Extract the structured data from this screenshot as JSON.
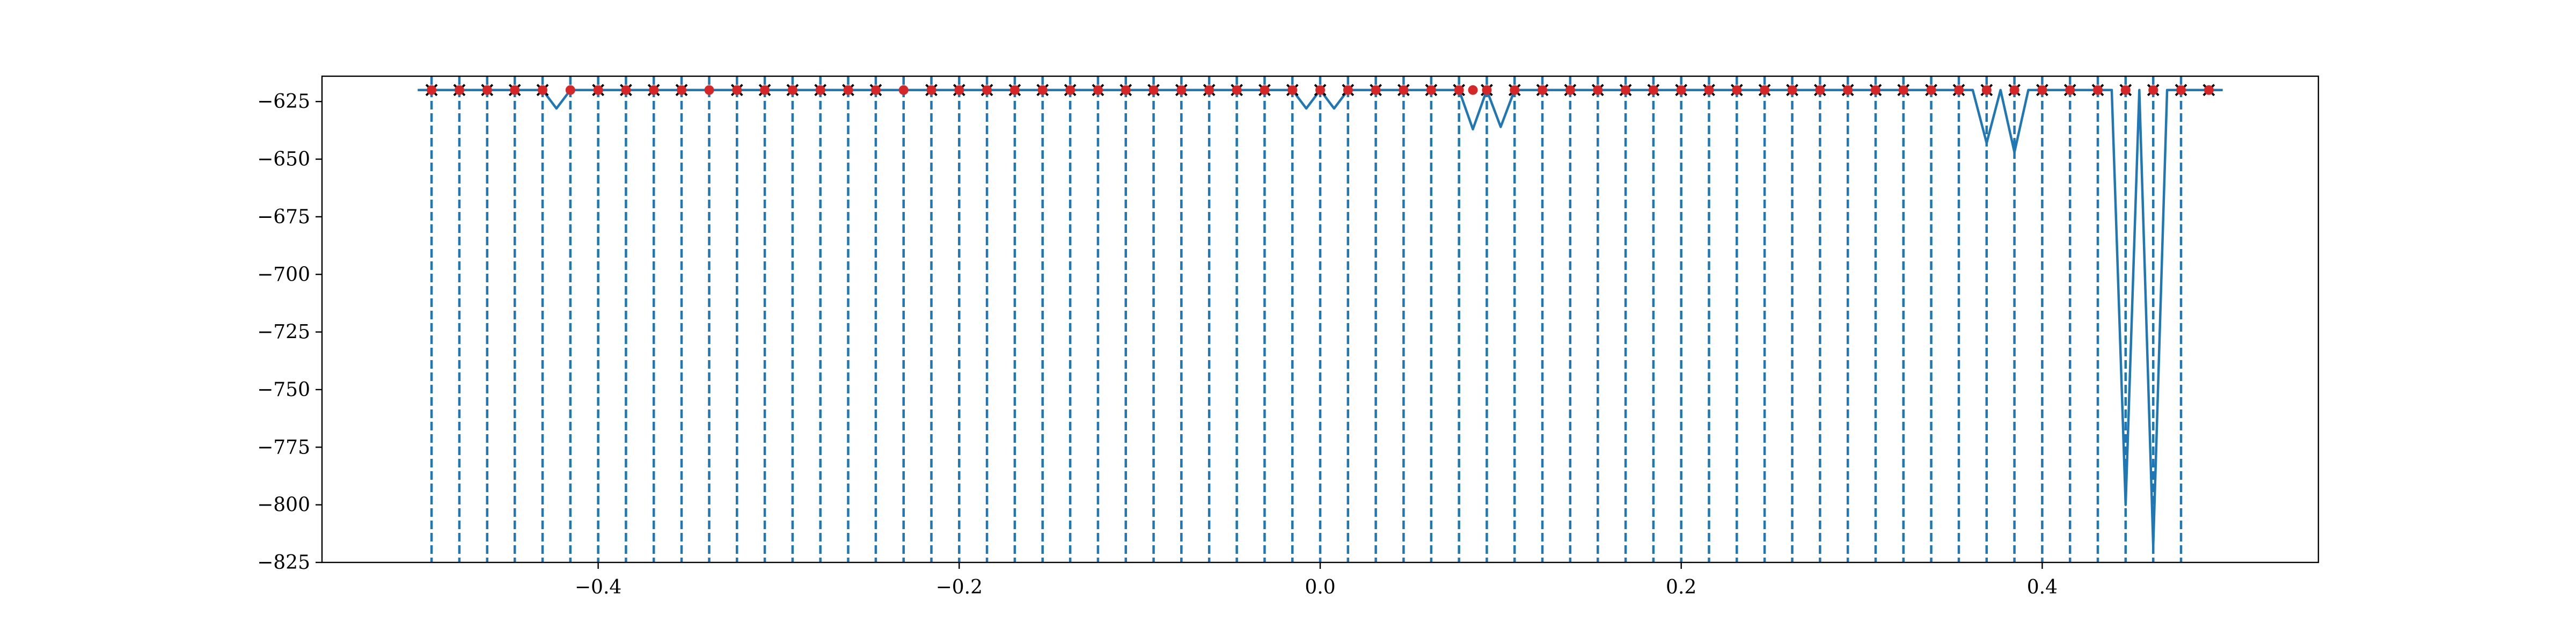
{
  "chart_data": {
    "type": "line",
    "title": "",
    "xlabel": "",
    "ylabel": "",
    "xlim": [
      -0.553,
      0.553
    ],
    "ylim": [
      -825,
      -614
    ],
    "grid": false,
    "xticks": [
      -0.4,
      -0.2,
      0.0,
      0.2,
      0.4
    ],
    "xtick_labels": [
      "−0.4",
      "−0.2",
      "0.0",
      "0.2",
      "0.4"
    ],
    "yticks": [
      -625,
      -650,
      -675,
      -700,
      -725,
      -750,
      -775,
      -800,
      -825
    ],
    "ytick_labels": [
      "−625",
      "−650",
      "−675",
      "−700",
      "−725",
      "−750",
      "−775",
      "−800",
      "−825"
    ],
    "colors": {
      "line": "#1f77b4",
      "red_marker": "#d62728",
      "x_marker": "#000000",
      "axes": "#000000"
    },
    "vertical_dashed_lines_x": [
      -0.4923,
      -0.4769,
      -0.4615,
      -0.4462,
      -0.4308,
      -0.4154,
      -0.4,
      -0.3846,
      -0.3692,
      -0.3538,
      -0.3385,
      -0.3231,
      -0.3077,
      -0.2923,
      -0.2769,
      -0.2615,
      -0.2462,
      -0.2308,
      -0.2154,
      -0.2,
      -0.1846,
      -0.1692,
      -0.1538,
      -0.1385,
      -0.1231,
      -0.1077,
      -0.0923,
      -0.0769,
      -0.0615,
      -0.0462,
      -0.0308,
      -0.0154,
      0.0,
      0.0154,
      0.0308,
      0.0462,
      0.0615,
      0.0769,
      0.0923,
      0.1077,
      0.1231,
      0.1385,
      0.1538,
      0.1692,
      0.1846,
      0.2,
      0.2154,
      0.2308,
      0.2462,
      0.2615,
      0.2769,
      0.2923,
      0.3077,
      0.3231,
      0.3385,
      0.3538,
      0.3692,
      0.3846,
      0.4,
      0.4154,
      0.4308,
      0.4462,
      0.4615,
      0.4769
    ],
    "series": [
      {
        "style": "solid",
        "x": [
          -0.5,
          -0.4923,
          -0.4846,
          -0.4769,
          -0.4692,
          -0.4615,
          -0.4538,
          -0.4462,
          -0.4385,
          -0.4308,
          -0.4231,
          -0.4154,
          -0.4077,
          -0.4,
          -0.3923,
          -0.3846,
          -0.3769,
          -0.3692,
          -0.3615,
          -0.3538,
          -0.3462,
          -0.3385,
          -0.3308,
          -0.3231,
          -0.3154,
          -0.3077,
          -0.3,
          -0.2923,
          -0.2846,
          -0.2769,
          -0.2692,
          -0.2615,
          -0.2538,
          -0.2462,
          -0.2385,
          -0.2308,
          -0.2231,
          -0.2154,
          -0.2077,
          -0.2,
          -0.1923,
          -0.1846,
          -0.1769,
          -0.1692,
          -0.1615,
          -0.1538,
          -0.1462,
          -0.1385,
          -0.1308,
          -0.1231,
          -0.1154,
          -0.1077,
          -0.1,
          -0.0923,
          -0.0846,
          -0.0769,
          -0.0692,
          -0.0615,
          -0.0538,
          -0.0462,
          -0.0385,
          -0.0308,
          -0.0231,
          -0.0154,
          -0.0077,
          0.0,
          0.0077,
          0.0154,
          0.0231,
          0.0308,
          0.0385,
          0.0462,
          0.0538,
          0.0615,
          0.0692,
          0.0769,
          0.0846,
          0.0923,
          0.1,
          0.1077,
          0.1154,
          0.1231,
          0.1308,
          0.1385,
          0.1462,
          0.1538,
          0.1615,
          0.1692,
          0.1769,
          0.1846,
          0.1923,
          0.2,
          0.2077,
          0.2154,
          0.2231,
          0.2308,
          0.2385,
          0.2462,
          0.2538,
          0.2615,
          0.2692,
          0.2769,
          0.2846,
          0.2923,
          0.3,
          0.3077,
          0.3154,
          0.3231,
          0.3308,
          0.3385,
          0.3462,
          0.3538,
          0.3615,
          0.3692,
          0.3769,
          0.3846,
          0.3923,
          0.4,
          0.4077,
          0.4154,
          0.4231,
          0.4308,
          0.4385,
          0.4462,
          0.4538,
          0.4615,
          0.4692,
          0.4769,
          0.4846,
          0.4923,
          0.5
        ],
        "y": [
          -620,
          -620,
          -620,
          -620,
          -620,
          -620,
          -620,
          -620,
          -620,
          -620,
          -628,
          -620,
          -620,
          -620,
          -620,
          -620,
          -620,
          -620,
          -620,
          -620,
          -620,
          -620,
          -620,
          -620,
          -620,
          -620,
          -620,
          -620,
          -620,
          -620,
          -620,
          -620,
          -620,
          -620,
          -620,
          -620,
          -620,
          -620,
          -620,
          -620,
          -620,
          -620,
          -620,
          -620,
          -620,
          -620,
          -620,
          -620,
          -620,
          -620,
          -620,
          -620,
          -620,
          -620,
          -620,
          -620,
          -620,
          -620,
          -620,
          -620,
          -620,
          -620,
          -620,
          -620,
          -628,
          -620,
          -628,
          -620,
          -620,
          -620,
          -620,
          -620,
          -620,
          -620,
          -620,
          -620,
          -637,
          -620,
          -636,
          -620,
          -620,
          -620,
          -620,
          -620,
          -620,
          -620,
          -620,
          -620,
          -620,
          -620,
          -620,
          -620,
          -620,
          -620,
          -620,
          -620,
          -620,
          -620,
          -620,
          -620,
          -620,
          -620,
          -620,
          -620,
          -620,
          -620,
          -620,
          -620,
          -620,
          -620,
          -620,
          -620,
          -620,
          -643,
          -620,
          -647,
          -620,
          -620,
          -620,
          -620,
          -620,
          -620,
          -620,
          -800,
          -620,
          -818,
          -620,
          -620,
          -620,
          -620,
          -620
        ]
      },
      {
        "style": "marker-x",
        "x": [
          -0.4923,
          -0.4769,
          -0.4615,
          -0.4462,
          -0.4308,
          -0.4,
          -0.3846,
          -0.3692,
          -0.3538,
          -0.3231,
          -0.3077,
          -0.2923,
          -0.2769,
          -0.2615,
          -0.2462,
          -0.2154,
          -0.2,
          -0.1846,
          -0.1692,
          -0.1538,
          -0.1385,
          -0.1231,
          -0.1077,
          -0.0923,
          -0.0769,
          -0.0615,
          -0.0462,
          -0.0308,
          -0.0154,
          0.0,
          0.0154,
          0.0308,
          0.0462,
          0.0615,
          0.0769,
          0.0923,
          0.1077,
          0.1231,
          0.1385,
          0.1538,
          0.1692,
          0.1846,
          0.2,
          0.2154,
          0.2308,
          0.2462,
          0.2615,
          0.2769,
          0.2923,
          0.3077,
          0.3231,
          0.3385,
          0.3538,
          0.3692,
          0.3846,
          0.4,
          0.4154,
          0.4308,
          0.4462,
          0.4615,
          0.4769,
          0.4923
        ],
        "y": [
          -620,
          -620,
          -620,
          -620,
          -620,
          -620,
          -620,
          -620,
          -620,
          -620,
          -620,
          -620,
          -620,
          -620,
          -620,
          -620,
          -620,
          -620,
          -620,
          -620,
          -620,
          -620,
          -620,
          -620,
          -620,
          -620,
          -620,
          -620,
          -620,
          -620,
          -620,
          -620,
          -620,
          -620,
          -620,
          -620,
          -620,
          -620,
          -620,
          -620,
          -620,
          -620,
          -620,
          -620,
          -620,
          -620,
          -620,
          -620,
          -620,
          -620,
          -620,
          -620,
          -620,
          -620,
          -620,
          -620,
          -620,
          -620,
          -620,
          -620,
          -620,
          -620
        ]
      },
      {
        "style": "marker-dot",
        "x": [
          -0.4923,
          -0.4769,
          -0.4615,
          -0.4462,
          -0.4308,
          -0.4154,
          -0.4,
          -0.3846,
          -0.3692,
          -0.3538,
          -0.3385,
          -0.3231,
          -0.3077,
          -0.2923,
          -0.2769,
          -0.2615,
          -0.2462,
          -0.2308,
          -0.2154,
          -0.2,
          -0.1846,
          -0.1692,
          -0.1538,
          -0.1385,
          -0.1231,
          -0.1077,
          -0.0923,
          -0.0769,
          -0.0615,
          -0.0462,
          -0.0308,
          -0.0154,
          0.0,
          0.0154,
          0.0308,
          0.0462,
          0.0615,
          0.0769,
          0.0846,
          0.0923,
          0.1077,
          0.1231,
          0.1385,
          0.1538,
          0.1692,
          0.1846,
          0.2,
          0.2154,
          0.2308,
          0.2462,
          0.2615,
          0.2769,
          0.2923,
          0.3077,
          0.3231,
          0.3385,
          0.3538,
          0.3692,
          0.3846,
          0.4,
          0.4154,
          0.4308,
          0.4462,
          0.4615,
          0.4769,
          0.4923
        ],
        "y": [
          -620,
          -620,
          -620,
          -620,
          -620,
          -620,
          -620,
          -620,
          -620,
          -620,
          -620,
          -620,
          -620,
          -620,
          -620,
          -620,
          -620,
          -620,
          -620,
          -620,
          -620,
          -620,
          -620,
          -620,
          -620,
          -620,
          -620,
          -620,
          -620,
          -620,
          -620,
          -620,
          -620,
          -620,
          -620,
          -620,
          -620,
          -620,
          -620,
          -620,
          -620,
          -620,
          -620,
          -620,
          -620,
          -620,
          -620,
          -620,
          -620,
          -620,
          -620,
          -620,
          -620,
          -620,
          -620,
          -620,
          -620,
          -620,
          -620,
          -620,
          -620,
          -620,
          -620,
          -620,
          -620,
          -620
        ]
      }
    ]
  }
}
